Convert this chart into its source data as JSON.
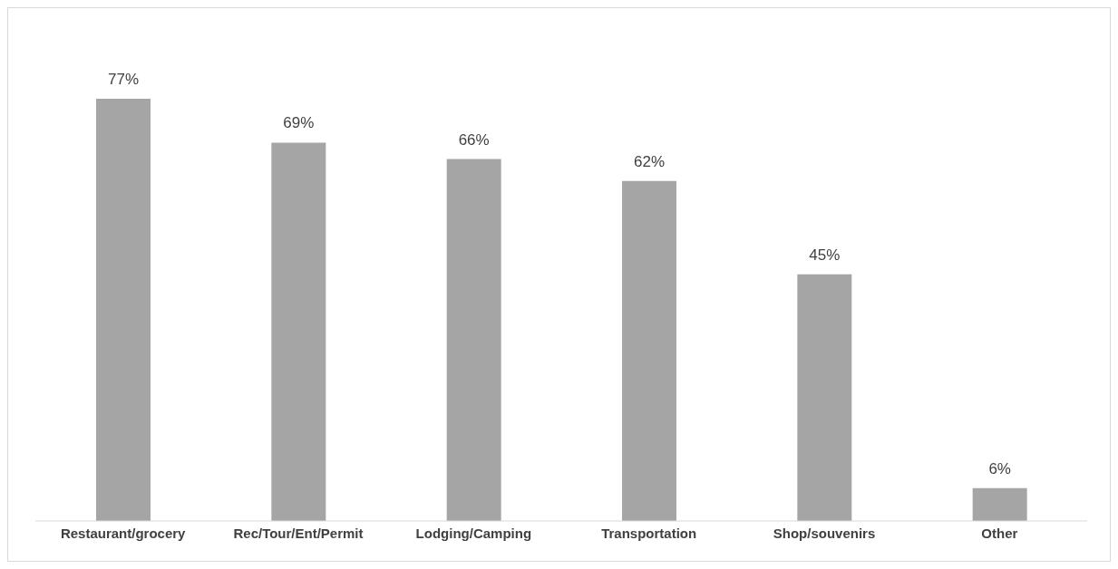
{
  "chart_data": {
    "type": "bar",
    "categories": [
      "Restaurant/grocery",
      "Rec/Tour/Ent/Permit",
      "Lodging/Camping",
      "Transportation",
      "Shop/souvenirs",
      "Other"
    ],
    "values": [
      77,
      69,
      66,
      62,
      45,
      6
    ],
    "color": "#a5a5a5",
    "value_labels": [
      "77%",
      "69%",
      "66%",
      "62%",
      "45%",
      "6%"
    ],
    "grid": false
  }
}
